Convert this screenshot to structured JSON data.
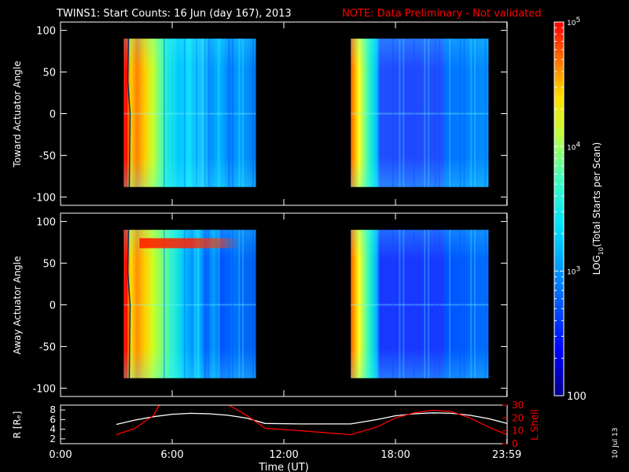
{
  "header": {
    "title": "TWINS1: Start Counts: 16 Jun (day 167), 2013",
    "note": "NOTE: Data Preliminary - Not validated",
    "note_color": "#ff0000",
    "title_color": "#ffffff"
  },
  "side_stamp": "10 Jul 13",
  "chart_data": [
    {
      "type": "heatmap",
      "panel": "toward",
      "ylabel": "Toward Actuator Angle",
      "ylim": [
        -110,
        110
      ],
      "yticks": [
        100,
        50,
        0,
        -50,
        -100
      ],
      "ytick_labels": [
        "100",
        "50",
        "0",
        "-50",
        "-100"
      ],
      "xlim": [
        0,
        24
      ],
      "data_segments": [
        [
          3.4,
          10.5
        ],
        [
          15.6,
          23.0
        ]
      ],
      "y_extent": [
        -88,
        90
      ],
      "colorscale": "rainbow-log",
      "zlim": [
        100,
        100000
      ],
      "zscale": "log"
    },
    {
      "type": "heatmap",
      "panel": "away",
      "ylabel": "Away Actuator Angle",
      "ylim": [
        -110,
        110
      ],
      "yticks": [
        100,
        50,
        0,
        -50,
        -100
      ],
      "ytick_labels": [
        "100",
        "50",
        "0",
        "-50",
        "-100"
      ],
      "xlim": [
        0,
        24
      ],
      "data_segments": [
        [
          3.4,
          10.5
        ],
        [
          15.6,
          23.0
        ]
      ],
      "y_extent": [
        -88,
        90
      ],
      "colorscale": "rainbow-log",
      "zlim": [
        100,
        100000
      ],
      "zscale": "log"
    },
    {
      "type": "line",
      "panel": "orbit",
      "ylabel_left": "R [Rₑ]",
      "ylabel_right": "L Shell",
      "ylim_left": [
        1,
        9
      ],
      "ylim_right": [
        0,
        30
      ],
      "yticks_left": [
        2,
        4,
        6,
        8
      ],
      "ytick_labels_left": [
        "2",
        "4",
        "6",
        "8"
      ],
      "yticks_right": [
        0,
        10,
        20,
        30
      ],
      "ytick_labels_right": [
        "0",
        "10",
        "20",
        "30"
      ],
      "series": [
        {
          "color": "#ffffff",
          "axis": "left",
          "x": [
            3.0,
            4.0,
            5.0,
            6.0,
            7.0,
            8.0,
            9.0,
            10.0,
            11.0,
            13.0,
            15.6,
            17.0,
            18.0,
            19.0,
            20.0,
            21.0,
            22.0,
            23.0,
            24.0
          ],
          "values": [
            5.0,
            5.9,
            6.6,
            7.1,
            7.3,
            7.2,
            6.9,
            6.3,
            5.2,
            5.1,
            5.1,
            6.0,
            6.8,
            7.2,
            7.4,
            7.3,
            6.9,
            6.2,
            5.2
          ]
        },
        {
          "color": "#ff0000",
          "axis": "right",
          "x": [
            3.0,
            4.0,
            5.0,
            5.5,
            6.0,
            8.3,
            8.7,
            10.0,
            11.0,
            13.0,
            15.6,
            17.0,
            18.0,
            19.0,
            20.0,
            21.0,
            22.0,
            23.0,
            24.0
          ],
          "values": [
            7.0,
            12.0,
            22.0,
            35.0,
            40.0,
            40.0,
            33.0,
            22.0,
            12.0,
            10.0,
            7.0,
            13.0,
            20.0,
            24.0,
            26.0,
            25.0,
            20.0,
            13.0,
            7.0
          ]
        }
      ],
      "xlim": [
        0,
        24
      ],
      "xlabel": "Time (UT)",
      "xticks": [
        0,
        6,
        12,
        18,
        23.983
      ],
      "xtick_labels": [
        "0:00",
        "6:00",
        "12:00",
        "18:00",
        "23:59"
      ]
    }
  ],
  "colorbar": {
    "label": "LOG",
    "label_sub": "10",
    "label_rest": "(Total Starts per Scan)",
    "ticks": [
      {
        "value": 100000,
        "base": "10",
        "exp": "5"
      },
      {
        "value": 10000,
        "base": "10",
        "exp": "4"
      },
      {
        "value": 1000,
        "base": "10",
        "exp": "3"
      },
      {
        "value": 100,
        "label": "100"
      }
    ],
    "zlim": [
      100,
      100000
    ]
  },
  "colors": {
    "axis": "#ffffff",
    "background": "#000000",
    "red": "#ff0000"
  }
}
